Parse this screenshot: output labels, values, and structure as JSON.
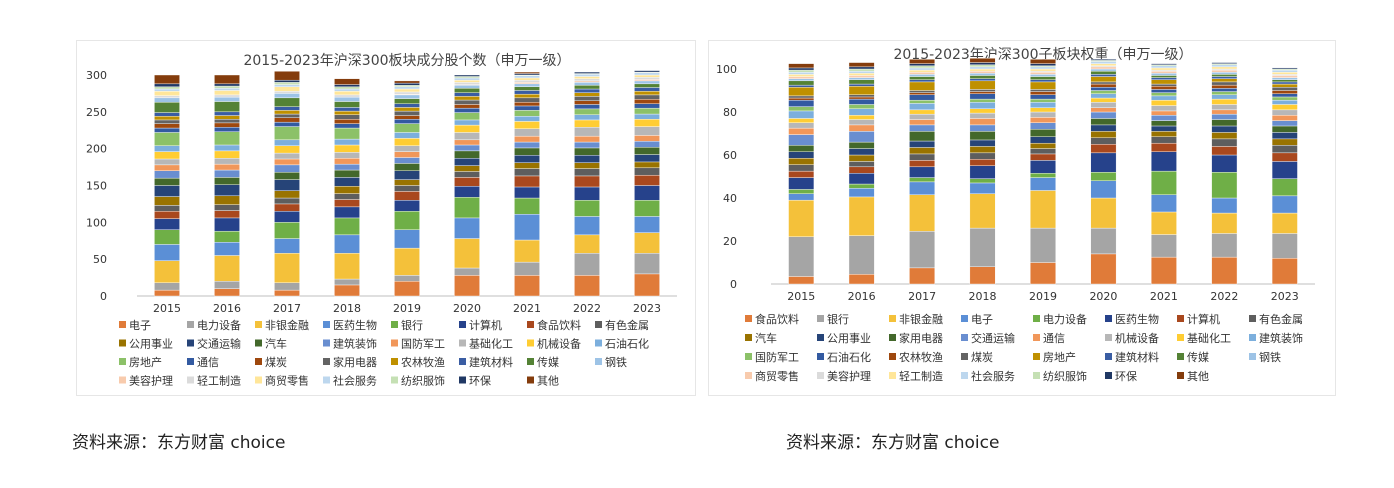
{
  "sources": {
    "left": "资料来源：东方财富 choice",
    "right": "资料来源：东方财富 choice"
  },
  "chart_data": [
    {
      "type": "bar",
      "stacked": true,
      "title": "2015-2023年沪深300板块成分股个数（申万一级）",
      "categories": [
        "2015",
        "2016",
        "2017",
        "2018",
        "2019",
        "2020",
        "2021",
        "2022",
        "2023"
      ],
      "ylim": [
        0,
        300
      ],
      "yticks": [
        0,
        50,
        100,
        150,
        200,
        250,
        300
      ],
      "grid": false,
      "legend_position": "bottom",
      "series": [
        {
          "name": "电子",
          "color": "#E07B39",
          "values": [
            8,
            10,
            8,
            15,
            20,
            28,
            28,
            28,
            30
          ]
        },
        {
          "name": "电力设备",
          "color": "#A5A5A5",
          "values": [
            10,
            10,
            10,
            8,
            8,
            10,
            18,
            30,
            28
          ]
        },
        {
          "name": "非银金融",
          "color": "#F4C13A",
          "values": [
            30,
            35,
            40,
            35,
            37,
            40,
            30,
            25,
            28
          ]
        },
        {
          "name": "医药生物",
          "color": "#5B8FD6",
          "values": [
            22,
            18,
            20,
            25,
            25,
            28,
            35,
            25,
            22
          ]
        },
        {
          "name": "银行",
          "color": "#6FAF47",
          "values": [
            20,
            15,
            22,
            23,
            25,
            28,
            22,
            22,
            22
          ]
        },
        {
          "name": "计算机",
          "color": "#26428B",
          "values": [
            15,
            18,
            15,
            15,
            15,
            15,
            15,
            18,
            20
          ]
        },
        {
          "name": "食品饮料",
          "color": "#A9481E",
          "values": [
            10,
            10,
            10,
            10,
            12,
            12,
            15,
            15,
            14
          ]
        },
        {
          "name": "有色金属",
          "color": "#5E5E5E",
          "values": [
            8,
            8,
            8,
            8,
            8,
            8,
            10,
            10,
            10
          ]
        },
        {
          "name": "公用事业",
          "color": "#997300",
          "values": [
            12,
            12,
            10,
            10,
            8,
            8,
            8,
            8,
            8
          ]
        },
        {
          "name": "交通运输",
          "color": "#264478",
          "values": [
            15,
            15,
            15,
            12,
            12,
            10,
            10,
            10,
            10
          ]
        },
        {
          "name": "汽车",
          "color": "#43682B",
          "values": [
            10,
            10,
            10,
            10,
            10,
            10,
            10,
            10,
            10
          ]
        },
        {
          "name": "建筑装饰",
          "color": "#698ED0",
          "values": [
            10,
            10,
            10,
            8,
            8,
            8,
            8,
            8,
            8
          ]
        },
        {
          "name": "国防军工",
          "color": "#F1975A",
          "values": [
            8,
            8,
            8,
            8,
            8,
            7,
            8,
            8,
            8
          ]
        },
        {
          "name": "基础化工",
          "color": "#B7B7B7",
          "values": [
            8,
            8,
            8,
            8,
            8,
            10,
            10,
            12,
            12
          ]
        },
        {
          "name": "机械设备",
          "color": "#FFCD33",
          "values": [
            10,
            10,
            10,
            10,
            10,
            10,
            10,
            10,
            10
          ]
        },
        {
          "name": "石油石化",
          "color": "#7CAFDD",
          "values": [
            8,
            8,
            8,
            8,
            8,
            7,
            7,
            7,
            7
          ]
        },
        {
          "name": "房地产",
          "color": "#8CC168",
          "values": [
            18,
            18,
            18,
            15,
            12,
            10,
            8,
            8,
            8
          ]
        },
        {
          "name": "通信",
          "color": "#335AA1",
          "values": [
            6,
            6,
            6,
            6,
            6,
            6,
            6,
            6,
            6
          ]
        },
        {
          "name": "煤炭",
          "color": "#9E480E",
          "values": [
            6,
            6,
            6,
            6,
            5,
            5,
            5,
            5,
            6
          ]
        },
        {
          "name": "家用电器",
          "color": "#636363",
          "values": [
            5,
            5,
            5,
            6,
            6,
            6,
            6,
            6,
            6
          ]
        },
        {
          "name": "农林牧渔",
          "color": "#BF9000",
          "values": [
            5,
            5,
            5,
            5,
            5,
            5,
            5,
            5,
            5
          ]
        },
        {
          "name": "建筑材料",
          "color": "#3A5DA3",
          "values": [
            5,
            5,
            5,
            5,
            5,
            5,
            5,
            5,
            5
          ]
        },
        {
          "name": "传媒",
          "color": "#548235",
          "values": [
            14,
            14,
            12,
            8,
            7,
            6,
            5,
            5,
            5
          ]
        },
        {
          "name": "钢铁",
          "color": "#9DC3E6",
          "values": [
            6,
            6,
            6,
            6,
            5,
            4,
            4,
            4,
            4
          ]
        },
        {
          "name": "美容护理",
          "color": "#F8CBAD",
          "values": [
            0,
            0,
            0,
            0,
            1,
            1,
            2,
            2,
            2
          ]
        },
        {
          "name": "轻工制造",
          "color": "#DBDBDB",
          "values": [
            3,
            3,
            3,
            3,
            3,
            3,
            3,
            3,
            3
          ]
        },
        {
          "name": "商贸零售",
          "color": "#FFE699",
          "values": [
            6,
            6,
            6,
            5,
            4,
            3,
            3,
            3,
            3
          ]
        },
        {
          "name": "社会服务",
          "color": "#BDD7EE",
          "values": [
            3,
            3,
            3,
            3,
            3,
            3,
            3,
            3,
            3
          ]
        },
        {
          "name": "纺织服饰",
          "color": "#C5E0B4",
          "values": [
            3,
            3,
            3,
            3,
            2,
            2,
            1,
            1,
            1
          ]
        },
        {
          "name": "环保",
          "color": "#203864",
          "values": [
            4,
            3,
            3,
            3,
            3,
            2,
            2,
            2,
            2
          ]
        },
        {
          "name": "其他",
          "color": "#843C0C",
          "values": [
            12,
            12,
            12,
            8,
            3,
            0,
            2,
            0,
            0
          ]
        }
      ]
    },
    {
      "type": "bar",
      "stacked": true,
      "title": "2015-2023年沪深300子板块权重（申万一级）",
      "categories": [
        "2015",
        "2016",
        "2017",
        "2018",
        "2019",
        "2020",
        "2021",
        "2022",
        "2023"
      ],
      "ylim": [
        0,
        100
      ],
      "yticks": [
        0,
        20,
        40,
        60,
        80,
        100
      ],
      "grid": false,
      "legend_position": "bottom",
      "series": [
        {
          "name": "食品饮料",
          "color": "#E07B39",
          "values": [
            3.5,
            4.5,
            7.5,
            8,
            10,
            14,
            12.5,
            12.5,
            12
          ]
        },
        {
          "name": "银行",
          "color": "#A5A5A5",
          "values": [
            18.5,
            18,
            17,
            18,
            16,
            12,
            10.5,
            11,
            11.5
          ]
        },
        {
          "name": "非银金融",
          "color": "#F4C13A",
          "values": [
            17,
            18,
            17,
            16,
            17.5,
            14,
            10.5,
            9.5,
            9.5
          ]
        },
        {
          "name": "电子",
          "color": "#5B8FD6",
          "values": [
            3,
            4,
            6,
            5,
            6,
            8,
            8,
            7,
            8
          ]
        },
        {
          "name": "电力设备",
          "color": "#6FAF47",
          "values": [
            2,
            2,
            2,
            2,
            2,
            4,
            11,
            12,
            8
          ]
        },
        {
          "name": "医药生物",
          "color": "#26428B",
          "values": [
            5.5,
            5,
            5,
            6,
            6,
            9,
            9,
            8,
            8
          ]
        },
        {
          "name": "计算机",
          "color": "#A9481E",
          "values": [
            3,
            3,
            3,
            3,
            3,
            4,
            4,
            4,
            4
          ]
        },
        {
          "name": "有色金属",
          "color": "#5E5E5E",
          "values": [
            3,
            2.5,
            3,
            3,
            2.5,
            3,
            3,
            3.5,
            3.5
          ]
        },
        {
          "name": "汽车",
          "color": "#997300",
          "values": [
            3,
            3,
            3,
            3,
            2.5,
            3,
            2.5,
            3,
            3
          ]
        },
        {
          "name": "公用事业",
          "color": "#264478",
          "values": [
            3,
            3,
            3,
            3,
            3,
            3,
            2.5,
            3,
            3
          ]
        },
        {
          "name": "家用电器",
          "color": "#43682B",
          "values": [
            3,
            3,
            4.5,
            4,
            3.5,
            3,
            2.5,
            3,
            3
          ]
        },
        {
          "name": "交通运输",
          "color": "#698ED0",
          "values": [
            5,
            5,
            3,
            3,
            3,
            3,
            2.5,
            2.5,
            2.5
          ]
        },
        {
          "name": "通信",
          "color": "#F1975A",
          "values": [
            3,
            3,
            2.5,
            3,
            2.5,
            2,
            2,
            2,
            2.5
          ]
        },
        {
          "name": "机械设备",
          "color": "#B7B7B7",
          "values": [
            2.5,
            2.5,
            2.5,
            2.5,
            2.5,
            2.5,
            2.5,
            2.5,
            2.5
          ]
        },
        {
          "name": "基础化工",
          "color": "#FFCD33",
          "values": [
            2,
            2,
            2,
            2,
            2,
            2,
            2.5,
            2.5,
            2.5
          ]
        },
        {
          "name": "建筑装饰",
          "color": "#7CAFDD",
          "values": [
            3.5,
            3,
            3,
            3,
            2.5,
            2,
            2,
            2,
            2
          ]
        },
        {
          "name": "国防军工",
          "color": "#8CC168",
          "values": [
            2,
            2,
            1.5,
            1.5,
            1.5,
            1.5,
            1.5,
            1.5,
            1.5
          ]
        },
        {
          "name": "石油石化",
          "color": "#335AA1",
          "values": [
            3,
            2.5,
            2.5,
            2.5,
            2,
            1.5,
            1.5,
            1.5,
            1.5
          ]
        },
        {
          "name": "农林牧渔",
          "color": "#9E480E",
          "values": [
            1,
            1,
            1,
            1,
            1.5,
            1.5,
            1.5,
            1.5,
            1.5
          ]
        },
        {
          "name": "煤炭",
          "color": "#636363",
          "values": [
            1,
            1,
            1,
            1,
            1,
            1,
            1,
            1.5,
            1.5
          ]
        },
        {
          "name": "房地产",
          "color": "#BF9000",
          "values": [
            4,
            4,
            4,
            4,
            3.5,
            2.5,
            2,
            1.5,
            1.5
          ]
        },
        {
          "name": "建筑材料",
          "color": "#3A5DA3",
          "values": [
            1,
            1,
            1,
            1,
            1,
            1,
            1,
            1,
            1
          ]
        },
        {
          "name": "传媒",
          "color": "#548235",
          "values": [
            2,
            2,
            1.5,
            1.5,
            1.5,
            1.5,
            1,
            1,
            1
          ]
        },
        {
          "name": "钢铁",
          "color": "#9DC3E6",
          "values": [
            1,
            1,
            1,
            1,
            1,
            1,
            1,
            1,
            1
          ]
        },
        {
          "name": "商贸零售",
          "color": "#F8CBAD",
          "values": [
            1,
            1,
            1,
            1,
            1,
            1,
            1,
            1,
            1
          ]
        },
        {
          "name": "美容护理",
          "color": "#DBDBDB",
          "values": [
            0,
            0,
            0,
            0,
            0.5,
            0.5,
            0.5,
            0.5,
            0.5
          ]
        },
        {
          "name": "轻工制造",
          "color": "#FFE699",
          "values": [
            1,
            1,
            1,
            1,
            1,
            1,
            1,
            1,
            1
          ]
        },
        {
          "name": "社会服务",
          "color": "#BDD7EE",
          "values": [
            1,
            1,
            1,
            1,
            1,
            1,
            1,
            1,
            1
          ]
        },
        {
          "name": "纺织服饰",
          "color": "#C5E0B4",
          "values": [
            1,
            1,
            1,
            1,
            0.5,
            0.5,
            0.5,
            0.5,
            0.5
          ]
        },
        {
          "name": "环保",
          "color": "#203864",
          "values": [
            1,
            1,
            1,
            1,
            1,
            0.5,
            0.5,
            0.5,
            0.5
          ]
        },
        {
          "name": "其他",
          "color": "#843C0C",
          "values": [
            2,
            2,
            2,
            2,
            2,
            0,
            0,
            0,
            0
          ]
        }
      ]
    }
  ]
}
